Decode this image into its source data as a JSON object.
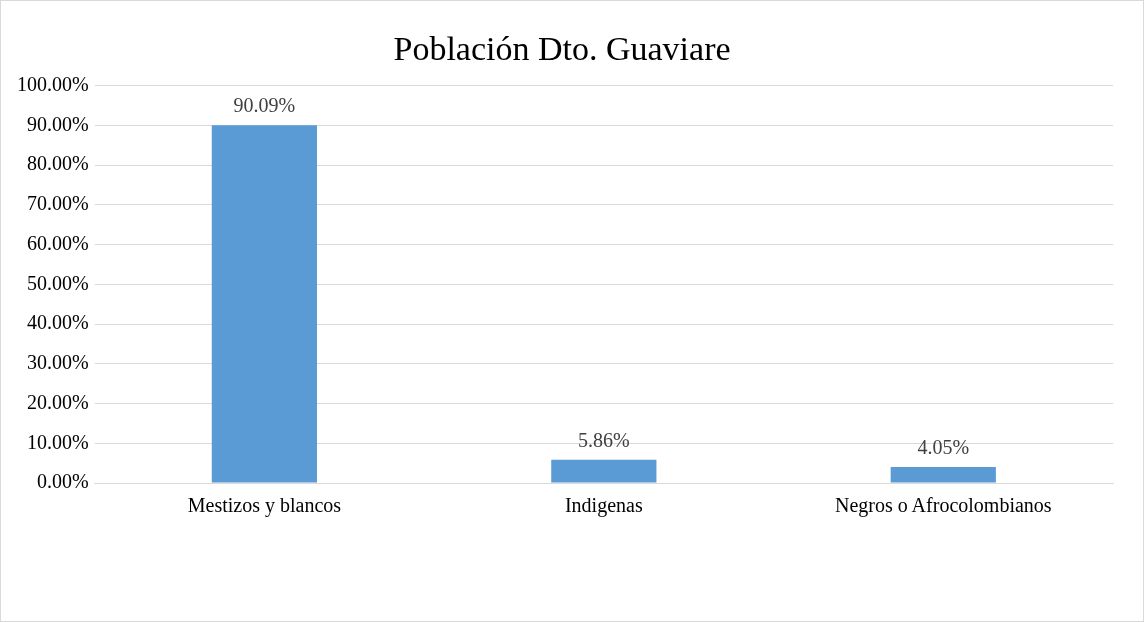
{
  "chart_data": {
    "type": "bar",
    "title": "Población Dto. Guaviare",
    "categories": [
      "Mestizos y blancos",
      "Indigenas",
      "Negros o Afrocolombianos"
    ],
    "values": [
      90.09,
      5.86,
      4.05
    ],
    "value_labels": [
      "90.09%",
      "5.86%",
      "4.05%"
    ],
    "color": "#5b9bd5",
    "ylim": [
      0,
      100
    ],
    "yticks": [
      {
        "value": 0,
        "label": "0.00%"
      },
      {
        "value": 10,
        "label": "10.00%"
      },
      {
        "value": 20,
        "label": "20.00%"
      },
      {
        "value": 30,
        "label": "30.00%"
      },
      {
        "value": 40,
        "label": "40.00%"
      },
      {
        "value": 50,
        "label": "50.00%"
      },
      {
        "value": 60,
        "label": "60.00%"
      },
      {
        "value": 70,
        "label": "70.00%"
      },
      {
        "value": 80,
        "label": "80.00%"
      },
      {
        "value": 90,
        "label": "90.00%"
      },
      {
        "value": 100,
        "label": "100.00%"
      }
    ],
    "grid": "y",
    "legend": false
  }
}
